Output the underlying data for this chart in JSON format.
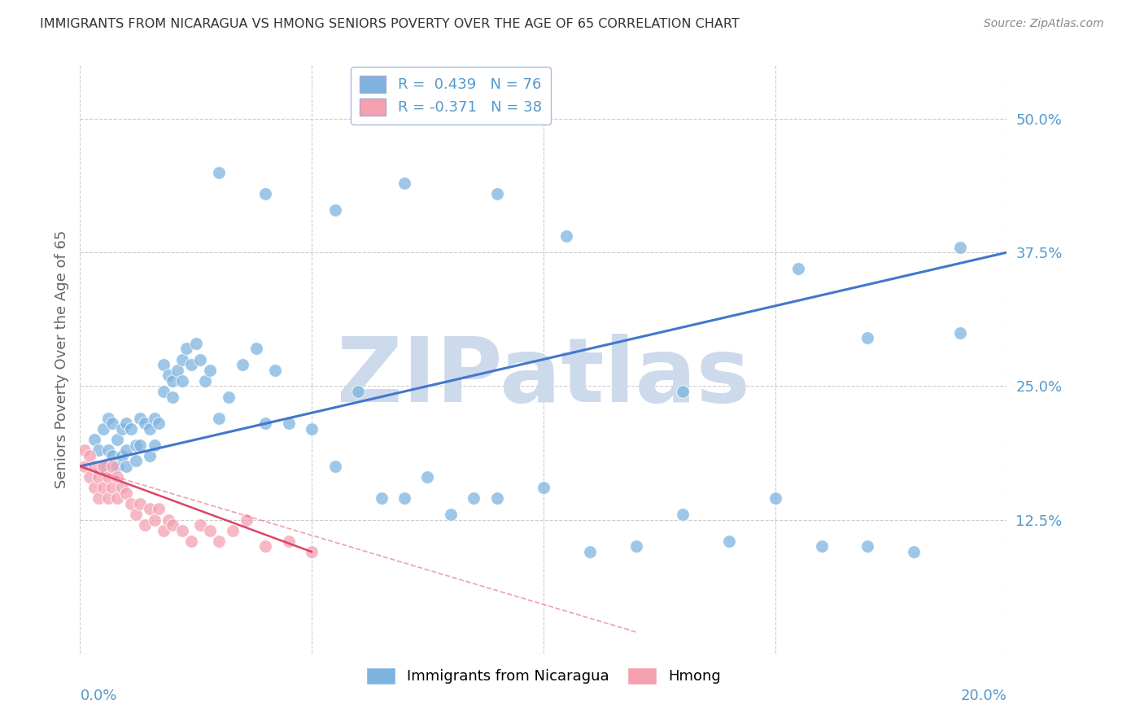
{
  "title": "IMMIGRANTS FROM NICARAGUA VS HMONG SENIORS POVERTY OVER THE AGE OF 65 CORRELATION CHART",
  "source": "Source: ZipAtlas.com",
  "ylabel": "Seniors Poverty Over the Age of 65",
  "ytick_vals": [
    0.0,
    0.125,
    0.25,
    0.375,
    0.5
  ],
  "ytick_labels": [
    "",
    "12.5%",
    "25.0%",
    "37.5%",
    "50.0%"
  ],
  "xlim": [
    0.0,
    0.2
  ],
  "ylim": [
    0.0,
    0.55
  ],
  "xtick_left_label": "0.0%",
  "xtick_right_label": "20.0%",
  "blue_R": 0.439,
  "blue_N": 76,
  "pink_R": -0.371,
  "pink_N": 38,
  "legend_label_blue": "Immigrants from Nicaragua",
  "legend_label_pink": "Hmong",
  "background_color": "#ffffff",
  "watermark": "ZIPatlas",
  "watermark_color": "#ccdaeb",
  "blue_color": "#7eb3e0",
  "pink_color": "#f4a0b0",
  "blue_line_color": "#4477cc",
  "pink_line_color": "#dd4466",
  "grid_color": "#cccccc",
  "title_color": "#333333",
  "axis_label_color": "#666666",
  "tick_label_color": "#5599cc",
  "blue_scatter_x": [
    0.003,
    0.004,
    0.005,
    0.005,
    0.006,
    0.006,
    0.007,
    0.007,
    0.008,
    0.008,
    0.009,
    0.009,
    0.01,
    0.01,
    0.01,
    0.011,
    0.012,
    0.012,
    0.013,
    0.013,
    0.014,
    0.015,
    0.015,
    0.016,
    0.016,
    0.017,
    0.018,
    0.018,
    0.019,
    0.02,
    0.02,
    0.021,
    0.022,
    0.022,
    0.023,
    0.024,
    0.025,
    0.026,
    0.027,
    0.028,
    0.03,
    0.032,
    0.035,
    0.038,
    0.04,
    0.042,
    0.045,
    0.05,
    0.055,
    0.06,
    0.065,
    0.07,
    0.075,
    0.08,
    0.085,
    0.09,
    0.1,
    0.11,
    0.12,
    0.13,
    0.14,
    0.15,
    0.16,
    0.17,
    0.18,
    0.19,
    0.19,
    0.17,
    0.155,
    0.13,
    0.105,
    0.09,
    0.07,
    0.055,
    0.04,
    0.03
  ],
  "blue_scatter_y": [
    0.2,
    0.19,
    0.21,
    0.175,
    0.22,
    0.19,
    0.215,
    0.185,
    0.2,
    0.175,
    0.21,
    0.185,
    0.19,
    0.215,
    0.175,
    0.21,
    0.195,
    0.18,
    0.22,
    0.195,
    0.215,
    0.21,
    0.185,
    0.22,
    0.195,
    0.215,
    0.27,
    0.245,
    0.26,
    0.255,
    0.24,
    0.265,
    0.275,
    0.255,
    0.285,
    0.27,
    0.29,
    0.275,
    0.255,
    0.265,
    0.22,
    0.24,
    0.27,
    0.285,
    0.215,
    0.265,
    0.215,
    0.21,
    0.175,
    0.245,
    0.145,
    0.145,
    0.165,
    0.13,
    0.145,
    0.145,
    0.155,
    0.095,
    0.1,
    0.13,
    0.105,
    0.145,
    0.1,
    0.1,
    0.095,
    0.3,
    0.38,
    0.295,
    0.36,
    0.245,
    0.39,
    0.43,
    0.44,
    0.415,
    0.43,
    0.45
  ],
  "pink_scatter_x": [
    0.001,
    0.001,
    0.002,
    0.002,
    0.003,
    0.003,
    0.004,
    0.004,
    0.005,
    0.005,
    0.006,
    0.006,
    0.007,
    0.007,
    0.008,
    0.008,
    0.009,
    0.01,
    0.011,
    0.012,
    0.013,
    0.014,
    0.015,
    0.016,
    0.017,
    0.018,
    0.019,
    0.02,
    0.022,
    0.024,
    0.026,
    0.028,
    0.03,
    0.033,
    0.036,
    0.04,
    0.045,
    0.05
  ],
  "pink_scatter_y": [
    0.19,
    0.175,
    0.185,
    0.165,
    0.175,
    0.155,
    0.165,
    0.145,
    0.175,
    0.155,
    0.165,
    0.145,
    0.175,
    0.155,
    0.165,
    0.145,
    0.155,
    0.15,
    0.14,
    0.13,
    0.14,
    0.12,
    0.135,
    0.125,
    0.135,
    0.115,
    0.125,
    0.12,
    0.115,
    0.105,
    0.12,
    0.115,
    0.105,
    0.115,
    0.125,
    0.1,
    0.105,
    0.095
  ],
  "blue_line_x0": 0.0,
  "blue_line_y0": 0.175,
  "blue_line_x1": 0.2,
  "blue_line_y1": 0.375,
  "pink_line_x0": 0.0,
  "pink_line_y0": 0.175,
  "pink_line_x1": 0.05,
  "pink_line_y1": 0.095,
  "pink_line_dash_x0": 0.0,
  "pink_line_dash_y0": 0.175,
  "pink_line_dash_x1": 0.12,
  "pink_line_dash_y1": 0.02
}
